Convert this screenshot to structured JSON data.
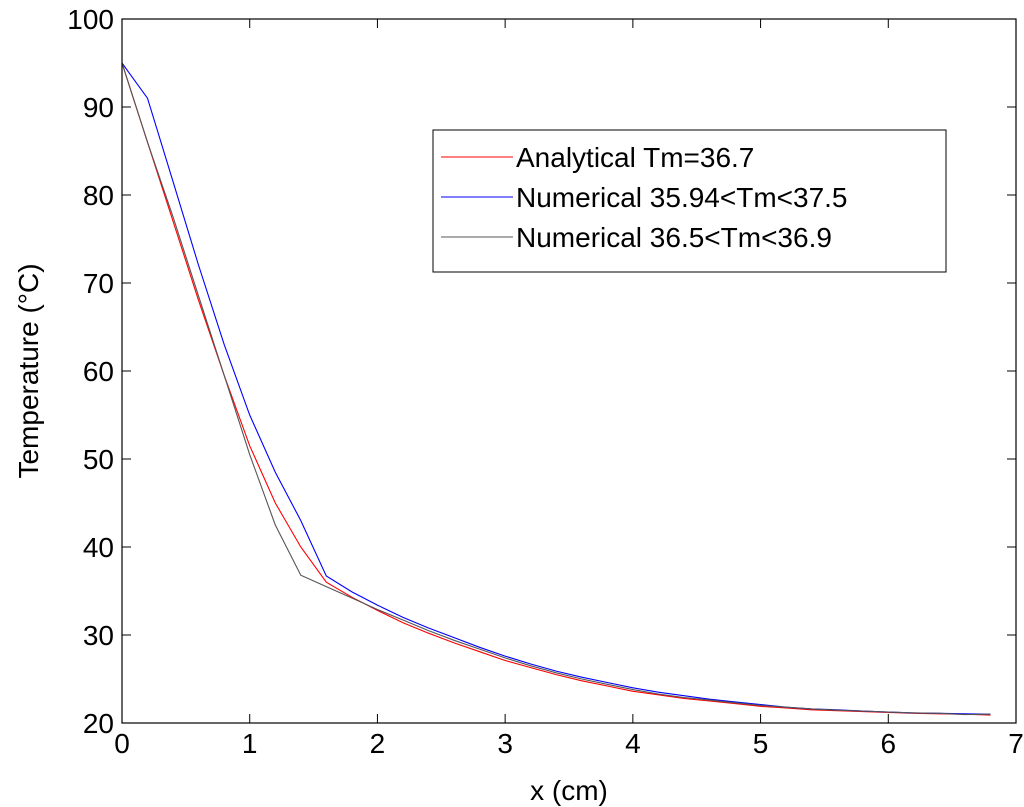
{
  "chart_data": {
    "type": "line",
    "title": "",
    "xlabel": "x (cm)",
    "ylabel": "Temperature (°C)",
    "xlim": [
      0,
      7
    ],
    "ylim": [
      20,
      100
    ],
    "xticks": [
      0,
      1,
      2,
      3,
      4,
      5,
      6,
      7
    ],
    "yticks": [
      20,
      30,
      40,
      50,
      60,
      70,
      80,
      90,
      100
    ],
    "grid": false,
    "legend_position": "top-right",
    "series": [
      {
        "name": "Analytical Tm=36.7",
        "color": "#ff0000",
        "x": [
          0,
          0.2,
          0.4,
          0.6,
          0.8,
          1.0,
          1.2,
          1.4,
          1.6,
          1.8,
          2.0,
          2.2,
          2.4,
          2.6,
          2.8,
          3.0,
          3.2,
          3.4,
          3.6,
          3.8,
          4.0,
          4.2,
          4.4,
          4.6,
          4.8,
          5.0,
          5.2,
          5.4,
          5.6,
          5.8,
          6.0,
          6.2,
          6.4,
          6.6,
          6.8
        ],
        "y": [
          95.0,
          86.0,
          77.0,
          68.0,
          59.5,
          51.5,
          45.0,
          40.0,
          36.0,
          34.3,
          32.8,
          31.4,
          30.2,
          29.1,
          28.1,
          27.1,
          26.3,
          25.5,
          24.8,
          24.2,
          23.6,
          23.2,
          22.8,
          22.5,
          22.2,
          21.9,
          21.7,
          21.5,
          21.4,
          21.3,
          21.2,
          21.1,
          21.05,
          21.0,
          20.9
        ]
      },
      {
        "name": "Numerical 35.94<Tm<37.5",
        "color": "#0000ff",
        "x": [
          0,
          0.2,
          0.4,
          0.6,
          0.8,
          1.0,
          1.2,
          1.4,
          1.6,
          1.8,
          2.0,
          2.2,
          2.4,
          2.6,
          2.8,
          3.0,
          3.2,
          3.4,
          3.6,
          3.8,
          4.0,
          4.2,
          4.4,
          4.6,
          4.8,
          5.0,
          5.2,
          5.4,
          5.6,
          5.8,
          6.0,
          6.2,
          6.4,
          6.6,
          6.8
        ],
        "y": [
          95.0,
          91.0,
          81.5,
          72.0,
          63.0,
          55.0,
          48.5,
          43.0,
          36.7,
          34.9,
          33.4,
          32.0,
          30.8,
          29.7,
          28.6,
          27.6,
          26.7,
          25.9,
          25.2,
          24.6,
          24.0,
          23.5,
          23.1,
          22.7,
          22.4,
          22.1,
          21.8,
          21.6,
          21.5,
          21.35,
          21.25,
          21.15,
          21.1,
          21.05,
          21.0
        ]
      },
      {
        "name": "Numerical 36.5<Tm<36.9",
        "color": "#555555",
        "x": [
          0,
          0.2,
          0.4,
          0.6,
          0.8,
          1.0,
          1.2,
          1.4,
          1.6,
          1.8,
          2.0,
          2.2,
          2.4,
          2.6,
          2.8,
          3.0,
          3.2,
          3.4,
          3.6,
          3.8,
          4.0,
          4.2,
          4.4,
          4.6,
          4.8,
          5.0,
          5.2,
          5.4,
          5.6,
          5.8,
          6.0,
          6.2,
          6.4,
          6.6,
          6.8
        ],
        "y": [
          95.0,
          86.0,
          77.5,
          68.5,
          59.5,
          50.5,
          42.5,
          36.8,
          35.5,
          34.2,
          32.9,
          31.7,
          30.5,
          29.4,
          28.4,
          27.4,
          26.5,
          25.7,
          25.0,
          24.4,
          23.8,
          23.3,
          22.9,
          22.6,
          22.3,
          22.0,
          21.8,
          21.6,
          21.45,
          21.35,
          21.25,
          21.15,
          21.1,
          20.95,
          21.0
        ]
      }
    ]
  }
}
